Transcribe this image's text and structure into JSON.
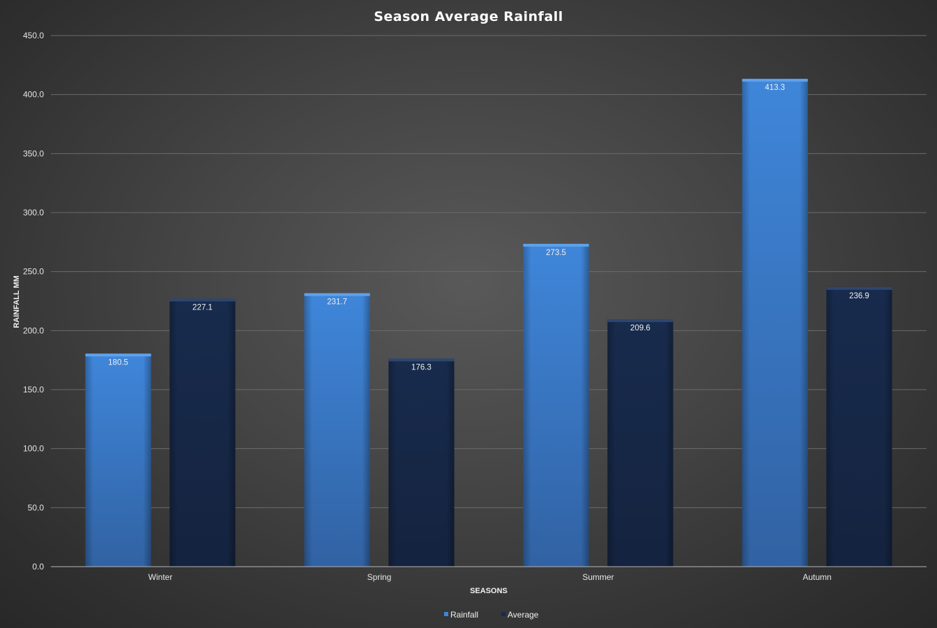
{
  "chart_data": {
    "type": "bar",
    "title": "Season Average Rainfall",
    "xlabel": "SEASONS",
    "ylabel": "RAINFALL MM",
    "categories": [
      "Winter",
      "Spring",
      "Summer",
      "Autumn"
    ],
    "series": [
      {
        "name": "Rainfall",
        "values": [
          180.5,
          231.7,
          273.5,
          413.3
        ],
        "value_labels": [
          "180.5",
          "231.7",
          "273.5",
          "413.3"
        ],
        "color": "#3f85d8",
        "color_dark": "#2f62a8"
      },
      {
        "name": "Average",
        "values": [
          227.1,
          176.3,
          209.6,
          236.9
        ],
        "value_labels": [
          "227.1",
          "176.3",
          "209.6",
          "236.9"
        ],
        "color": "#17294a",
        "color_dark": "#132240"
      }
    ],
    "ylim": [
      0,
      450
    ],
    "yticks": [
      "0.0",
      "50.0",
      "100.0",
      "150.0",
      "200.0",
      "250.0",
      "300.0",
      "350.0",
      "400.0",
      "450.0"
    ],
    "grid": true,
    "legend_position": "bottom-center",
    "background": "#404040",
    "gridline_color": "#6a6a6a"
  }
}
